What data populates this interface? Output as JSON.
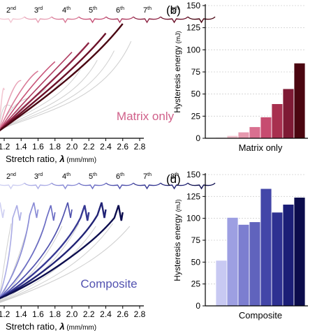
{
  "chart_data": [
    {
      "type": "line",
      "panel": "a",
      "xlabel_prefix": "Stretch ratio, ",
      "xlabel_symbol": "λ",
      "xlabel_unit": " (mm/mm)",
      "xticks": [
        "1.2",
        "1.4",
        "1.6",
        "1.8",
        "2.0",
        "2.2",
        "2.4",
        "2.6",
        "2.8"
      ],
      "xlim": [
        1.0,
        2.8
      ],
      "cycle_labels": [
        {
          "n": "2",
          "sup": "nd"
        },
        {
          "n": "3",
          "sup": "rd"
        },
        {
          "n": "4",
          "sup": "th"
        },
        {
          "n": "5",
          "sup": "th"
        },
        {
          "n": "6",
          "sup": "th"
        },
        {
          "n": "7",
          "sup": "th"
        },
        {
          "n": "8",
          "sup": "th"
        }
      ],
      "annotation": "Matrix only",
      "annotation_color": "#d0608a",
      "series_colors": [
        "#f3c8d3",
        "#e8a3b7",
        "#d97a97",
        "#c85277",
        "#b03d62",
        "#8e2545",
        "#6b1028",
        "#4a0512"
      ],
      "cycle_end_stretch": [
        1.2,
        1.4,
        1.6,
        1.8,
        2.0,
        2.2,
        2.4,
        2.6
      ]
    },
    {
      "type": "bar",
      "panel": "b",
      "panel_label": "(b)",
      "xlabel": "Matrix only",
      "ylabel": "Hysteresis energy",
      "ylabel_unit": "(mJ)",
      "ylim": [
        0,
        150
      ],
      "yticks": [
        "0",
        "25",
        "50",
        "75",
        "100",
        "125",
        "150"
      ],
      "grid": true,
      "values": [
        1,
        3,
        7,
        13,
        24,
        39,
        56,
        85
      ],
      "colors": [
        "#f7dde3",
        "#f0c0cc",
        "#e699ae",
        "#d97090",
        "#c74c70",
        "#a8304f",
        "#7e1a34",
        "#4b0610"
      ]
    },
    {
      "type": "line",
      "panel": "c",
      "xlabel_prefix": "Stretch ratio, ",
      "xlabel_symbol": "λ",
      "xlabel_unit": " (mm/mm)",
      "xticks": [
        "1.2",
        "1.4",
        "1.6",
        "1.8",
        "2.0",
        "2.2",
        "2.4",
        "2.6",
        "2.8"
      ],
      "xlim": [
        1.0,
        2.8
      ],
      "cycle_labels": [
        {
          "n": "2",
          "sup": "nd"
        },
        {
          "n": "3",
          "sup": "rd"
        },
        {
          "n": "4",
          "sup": "th"
        },
        {
          "n": "5",
          "sup": "th"
        },
        {
          "n": "6",
          "sup": "th"
        },
        {
          "n": "7",
          "sup": "th"
        },
        {
          "n": "8",
          "sup": "th"
        }
      ],
      "annotation": "Composite",
      "annotation_color": "#5252b0",
      "series_colors": [
        "#cfd0f2",
        "#adaee6",
        "#8a8cd6",
        "#6b6dc4",
        "#4f51ad",
        "#363893",
        "#212375",
        "#0d0e4f"
      ],
      "cycle_end_stretch": [
        1.2,
        1.4,
        1.6,
        1.8,
        2.0,
        2.2,
        2.4,
        2.6
      ]
    },
    {
      "type": "bar",
      "panel": "d",
      "panel_label": "(d)",
      "xlabel": "Composite",
      "ylabel": "Hysteresis energy",
      "ylabel_unit": "(mJ)",
      "ylim": [
        0,
        150
      ],
      "yticks": [
        "0",
        "25",
        "50",
        "75",
        "100",
        "125",
        "150"
      ],
      "grid": true,
      "values": [
        52,
        101,
        93,
        96,
        134,
        107,
        116,
        124
      ],
      "colors": [
        "#c8c9f2",
        "#9d9fe2",
        "#7c7ed0",
        "#6063bd",
        "#4346a8",
        "#2e3192",
        "#1b1e77",
        "#0b0c4c"
      ]
    }
  ]
}
